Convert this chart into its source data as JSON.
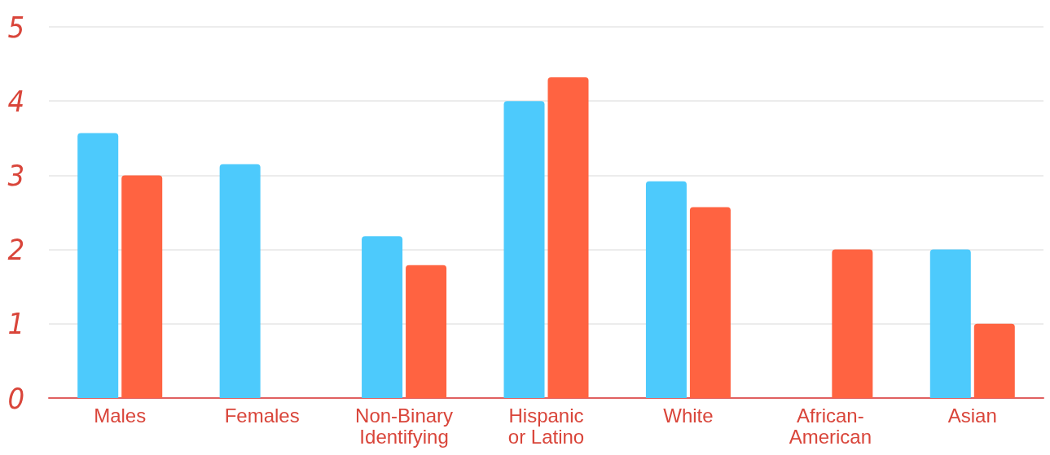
{
  "chart_data": {
    "type": "bar",
    "categories": [
      "Males",
      "Females",
      "Non-Binary Identifying",
      "Hispanic or Latino",
      "White",
      "African-American",
      "Asian"
    ],
    "series": [
      {
        "color": "#4dcafc",
        "values": [
          3.57,
          3.15,
          2.18,
          4.0,
          2.92,
          null,
          2.0
        ]
      },
      {
        "color": "#ff6341",
        "values": [
          3.0,
          null,
          1.79,
          4.32,
          2.57,
          2.0,
          1.0
        ]
      }
    ],
    "ylim": [
      0,
      5
    ],
    "yticks": [
      0,
      1,
      2,
      3,
      4,
      5
    ],
    "grid": "y"
  }
}
